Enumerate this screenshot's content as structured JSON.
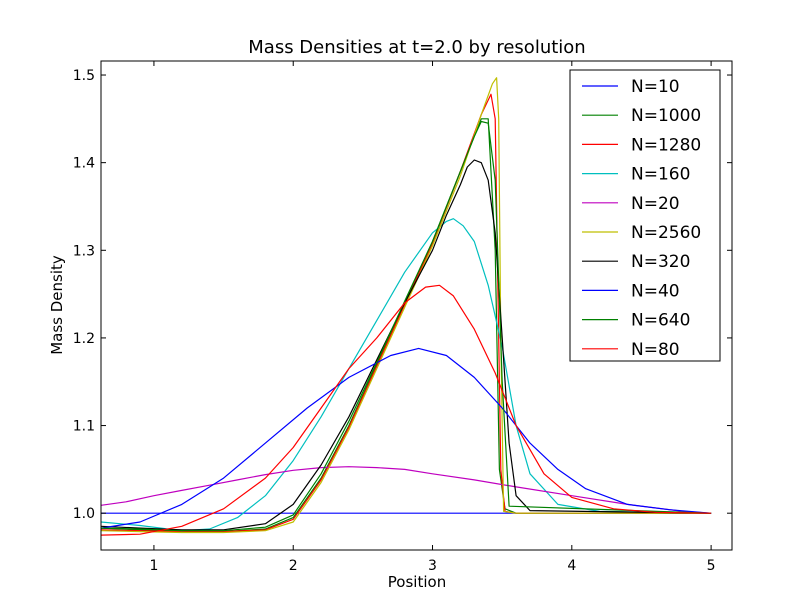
{
  "chart_data": {
    "type": "line",
    "title": "Mass Densities at t=2.0 by resolution",
    "xlabel": "Position",
    "ylabel": "Mass Density",
    "xlim": [
      0.62,
      5.15
    ],
    "ylim": [
      0.958,
      1.516
    ],
    "xticks": [
      1,
      2,
      3,
      4,
      5
    ],
    "yticks": [
      1.0,
      1.1,
      1.2,
      1.3,
      1.4,
      1.5
    ],
    "xtick_labels": [
      "1",
      "2",
      "3",
      "4",
      "5"
    ],
    "ytick_labels": [
      "1.0",
      "1.1",
      "1.2",
      "1.3",
      "1.4",
      "1.5"
    ],
    "grid": false,
    "legend_position": "top-right",
    "series": [
      {
        "name": "N=10",
        "color": "#0000ff",
        "x": [
          0.62,
          5.0
        ],
        "y": [
          1.0,
          1.0
        ]
      },
      {
        "name": "N=1000",
        "color": "#008000",
        "x": [
          0.62,
          0.9,
          1.2,
          1.5,
          1.8,
          2.0,
          2.2,
          2.4,
          2.6,
          2.8,
          3.0,
          3.2,
          3.35,
          3.4,
          3.45,
          3.48,
          3.52,
          3.6,
          5.0
        ],
        "y": [
          0.983,
          0.981,
          0.979,
          0.979,
          0.982,
          0.995,
          1.04,
          1.1,
          1.17,
          1.24,
          1.31,
          1.39,
          1.45,
          1.45,
          1.3,
          1.05,
          1.005,
          1.0,
          1.0
        ]
      },
      {
        "name": "N=1280",
        "color": "#ff0000",
        "x": [
          0.62,
          0.9,
          1.2,
          1.5,
          1.8,
          2.0,
          2.2,
          2.4,
          2.6,
          2.8,
          3.0,
          3.2,
          3.35,
          3.42,
          3.45,
          3.47,
          3.49,
          3.52,
          3.6,
          5.0
        ],
        "y": [
          0.981,
          0.98,
          0.979,
          0.979,
          0.981,
          0.993,
          1.038,
          1.098,
          1.168,
          1.238,
          1.308,
          1.39,
          1.455,
          1.478,
          1.45,
          1.25,
          1.05,
          1.002,
          1.0,
          1.0
        ]
      },
      {
        "name": "N=160",
        "color": "#00bfbf",
        "x": [
          0.62,
          0.9,
          1.2,
          1.4,
          1.6,
          1.8,
          2.0,
          2.2,
          2.4,
          2.6,
          2.8,
          3.0,
          3.1,
          3.15,
          3.22,
          3.3,
          3.4,
          3.5,
          3.6,
          3.7,
          3.9,
          4.2,
          5.0
        ],
        "y": [
          0.99,
          0.986,
          0.98,
          0.982,
          0.995,
          1.02,
          1.06,
          1.11,
          1.165,
          1.22,
          1.275,
          1.32,
          1.333,
          1.336,
          1.328,
          1.31,
          1.26,
          1.19,
          1.1,
          1.045,
          1.01,
          1.002,
          1.0
        ]
      },
      {
        "name": "N=20",
        "color": "#bf00bf",
        "x": [
          0.62,
          0.8,
          1.0,
          1.2,
          1.4,
          1.6,
          1.8,
          2.0,
          2.2,
          2.4,
          2.6,
          2.8,
          3.0,
          3.3,
          3.6,
          4.0,
          4.4,
          4.8,
          5.0
        ],
        "y": [
          1.009,
          1.013,
          1.02,
          1.026,
          1.032,
          1.038,
          1.044,
          1.049,
          1.052,
          1.053,
          1.052,
          1.05,
          1.045,
          1.038,
          1.03,
          1.02,
          1.01,
          1.002,
          1.0
        ]
      },
      {
        "name": "N=2560",
        "color": "#bfbf00",
        "x": [
          0.62,
          0.9,
          1.2,
          1.5,
          1.8,
          2.0,
          2.2,
          2.4,
          2.6,
          2.8,
          3.0,
          3.2,
          3.35,
          3.43,
          3.46,
          3.475,
          3.49,
          3.51,
          3.6,
          5.0
        ],
        "y": [
          0.98,
          0.979,
          0.978,
          0.978,
          0.98,
          0.99,
          1.035,
          1.095,
          1.165,
          1.235,
          1.305,
          1.385,
          1.455,
          1.49,
          1.497,
          1.45,
          1.2,
          1.002,
          1.0,
          1.0
        ]
      },
      {
        "name": "N=320",
        "color": "#000000",
        "x": [
          0.62,
          0.9,
          1.2,
          1.5,
          1.8,
          2.0,
          2.2,
          2.4,
          2.6,
          2.8,
          3.0,
          3.1,
          3.2,
          3.25,
          3.3,
          3.35,
          3.4,
          3.45,
          3.5,
          3.55,
          3.6,
          3.7,
          5.0
        ],
        "y": [
          0.985,
          0.983,
          0.981,
          0.981,
          0.988,
          1.01,
          1.055,
          1.11,
          1.175,
          1.24,
          1.3,
          1.34,
          1.375,
          1.395,
          1.403,
          1.4,
          1.38,
          1.32,
          1.2,
          1.08,
          1.02,
          1.003,
          1.0
        ]
      },
      {
        "name": "N=40",
        "color": "#0000ff",
        "x": [
          0.62,
          0.9,
          1.2,
          1.5,
          1.8,
          2.1,
          2.4,
          2.7,
          2.9,
          3.1,
          3.3,
          3.5,
          3.7,
          3.9,
          4.1,
          4.4,
          4.7,
          5.0
        ],
        "y": [
          0.983,
          0.99,
          1.01,
          1.04,
          1.08,
          1.12,
          1.155,
          1.18,
          1.188,
          1.18,
          1.155,
          1.12,
          1.08,
          1.05,
          1.028,
          1.01,
          1.004,
          1.0
        ]
      },
      {
        "name": "N=640",
        "color": "#008000",
        "x": [
          0.62,
          0.9,
          1.2,
          1.5,
          1.8,
          2.0,
          2.2,
          2.4,
          2.6,
          2.8,
          3.0,
          3.2,
          3.3,
          3.35,
          3.4,
          3.45,
          3.5,
          3.55,
          5.0
        ],
        "y": [
          0.983,
          0.982,
          0.98,
          0.98,
          0.984,
          0.998,
          1.045,
          1.105,
          1.172,
          1.242,
          1.31,
          1.39,
          1.43,
          1.447,
          1.445,
          1.38,
          1.15,
          1.008,
          1.0
        ]
      },
      {
        "name": "N=80",
        "color": "#ff0000",
        "x": [
          0.62,
          0.9,
          1.2,
          1.5,
          1.8,
          2.0,
          2.2,
          2.4,
          2.6,
          2.8,
          2.95,
          3.05,
          3.15,
          3.3,
          3.45,
          3.6,
          3.8,
          4.0,
          4.3,
          4.6,
          5.0
        ],
        "y": [
          0.975,
          0.976,
          0.985,
          1.005,
          1.04,
          1.075,
          1.12,
          1.165,
          1.2,
          1.24,
          1.258,
          1.26,
          1.248,
          1.21,
          1.16,
          1.1,
          1.045,
          1.018,
          1.005,
          1.001,
          1.0
        ]
      }
    ]
  }
}
